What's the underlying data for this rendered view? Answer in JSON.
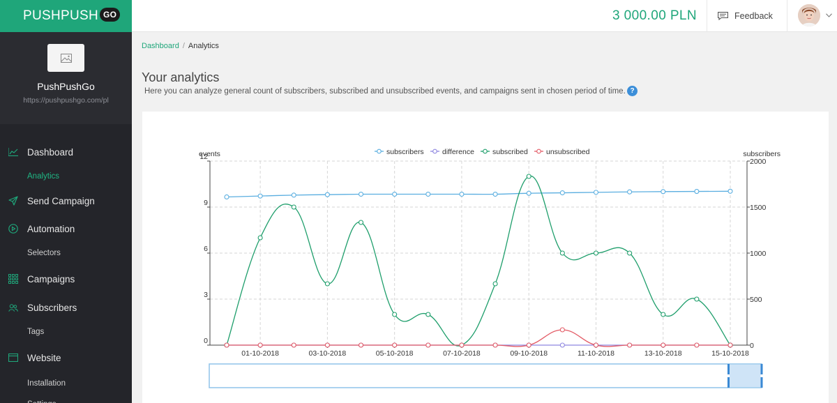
{
  "brand": {
    "name": "PUSHPUSH",
    "badge": "GO"
  },
  "account": {
    "name": "PushPushGo",
    "url": "https://pushpushgo.com/pl"
  },
  "sidebar": {
    "items": [
      {
        "label": "Dashboard",
        "icon": "chart-line-icon"
      },
      {
        "label": "Analytics",
        "sub": true,
        "active": true
      },
      {
        "label": "Send Campaign",
        "icon": "paper-plane-icon"
      },
      {
        "label": "Automation",
        "icon": "play-circle-icon"
      },
      {
        "label": "Selectors",
        "sub": true
      },
      {
        "label": "Campaigns",
        "icon": "grid-icon"
      },
      {
        "label": "Subscribers",
        "icon": "users-icon"
      },
      {
        "label": "Tags",
        "sub": true
      },
      {
        "label": "Website",
        "icon": "browser-window-icon"
      },
      {
        "label": "Installation",
        "sub": true
      },
      {
        "label": "Settings",
        "sub": true
      }
    ]
  },
  "topbar": {
    "balance": "3 000.00 PLN",
    "feedback_label": "Feedback"
  },
  "breadcrumb": {
    "parent": "Dashboard",
    "separator": "/",
    "current": "Analytics"
  },
  "page": {
    "title": "Your analytics",
    "description": "Here you can analyze general count of subscribers, subscribed and unsubscribed events, and campaigns sent in chosen period of time.",
    "help": "?"
  },
  "colors": {
    "accent": "#1fa67a",
    "sidebar": "#24252a",
    "subscribers": "#5aaee0",
    "difference": "#8e86e0",
    "subscribed": "#1e9e6b",
    "unsubscribed": "#e35b66"
  },
  "chart_data": {
    "type": "line",
    "title": "",
    "ylabel_left": "events",
    "ylabel_right": "subscribers",
    "ylim_left": [
      0,
      12
    ],
    "ylim_right": [
      0,
      2000
    ],
    "yticks_left": [
      "0",
      "3",
      "6",
      "9",
      "12"
    ],
    "yticks_right": [
      "0",
      "500",
      "1000",
      "1500",
      "2000"
    ],
    "legend_position": "top-center",
    "grid": true,
    "x_ticks": [
      "01-10-2018",
      "03-10-2018",
      "05-10-2018",
      "07-10-2018",
      "09-10-2018",
      "11-10-2018",
      "13-10-2018",
      "15-10-2018"
    ],
    "x": [
      "30-09-2018",
      "01-10-2018",
      "02-10-2018",
      "03-10-2018",
      "04-10-2018",
      "05-10-2018",
      "06-10-2018",
      "07-10-2018",
      "08-10-2018",
      "09-10-2018",
      "10-10-2018",
      "11-10-2018",
      "12-10-2018",
      "13-10-2018",
      "14-10-2018",
      "15-10-2018"
    ],
    "series": [
      {
        "name": "subscribers",
        "axis": "right",
        "values": [
          1610,
          1620,
          1630,
          1635,
          1640,
          1640,
          1640,
          1640,
          1640,
          1650,
          1655,
          1660,
          1665,
          1668,
          1670,
          1672
        ]
      },
      {
        "name": "difference",
        "axis": "left",
        "values": [
          0,
          0,
          0,
          0,
          0,
          0,
          0,
          0,
          0,
          0,
          0,
          0,
          0,
          0,
          0,
          0
        ]
      },
      {
        "name": "subscribed",
        "axis": "left",
        "values": [
          0,
          7,
          9,
          4,
          8,
          2,
          2,
          0,
          4,
          11,
          6,
          6,
          6,
          2,
          3,
          0
        ]
      },
      {
        "name": "unsubscribed",
        "axis": "left",
        "values": [
          0,
          0,
          0,
          0,
          0,
          0,
          0,
          0,
          0,
          0,
          1,
          0,
          0,
          0,
          0,
          0
        ]
      }
    ],
    "zoom_range": [
      0.94,
      1.0
    ]
  }
}
